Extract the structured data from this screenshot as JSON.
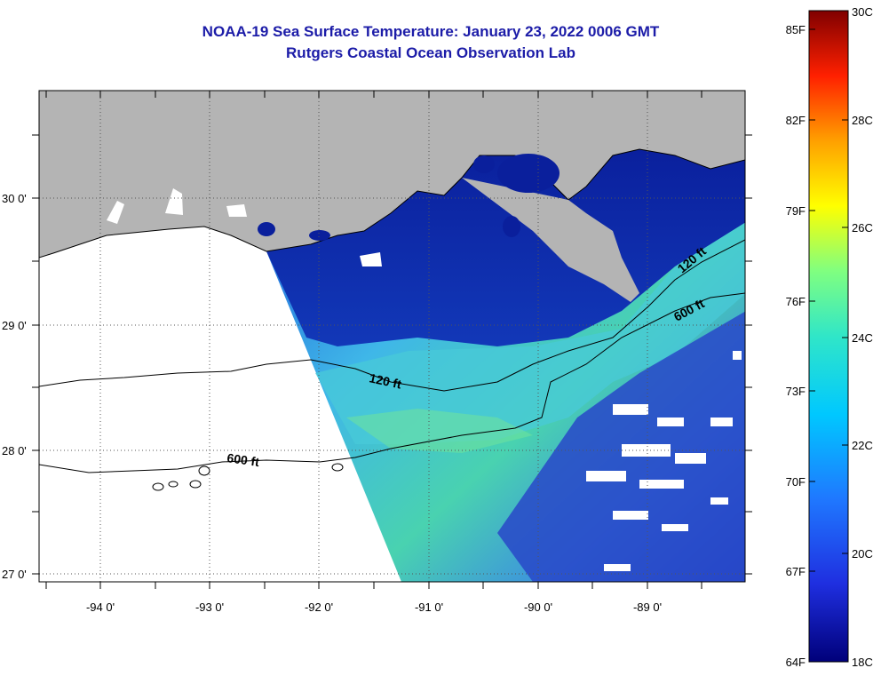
{
  "header": {
    "title": "NOAA-19 Sea Surface Temperature:  January 23, 2022 0006 GMT",
    "subtitle": "Rutgers Coastal Ocean Observation Lab"
  },
  "map": {
    "lon_labels": [
      "-94 0'",
      "-93 0'",
      "-92 0'",
      "-91 0'",
      "-90 0'",
      "-89 0'"
    ],
    "lat_labels": [
      "30 0'",
      "29 0'",
      "28 0'",
      "27 0'"
    ],
    "contour_labels": [
      "120 ft",
      "600 ft",
      "120 ft",
      "600 ft"
    ],
    "colors": {
      "land": "#b4b4b4",
      "deep_blue": "#0a1f9c",
      "frame": "#000000"
    }
  },
  "colorbar": {
    "fahrenheit_labels": [
      "85F",
      "82F",
      "79F",
      "76F",
      "73F",
      "70F",
      "67F",
      "64F"
    ],
    "celsius_labels": [
      "30C",
      "28C",
      "26C",
      "24C",
      "22C",
      "20C",
      "18C"
    ],
    "colors": [
      "#000080",
      "#0000ff",
      "#00c0ff",
      "#00ffc0",
      "#ffff00",
      "#ff8000",
      "#ff0000",
      "#800000"
    ]
  }
}
